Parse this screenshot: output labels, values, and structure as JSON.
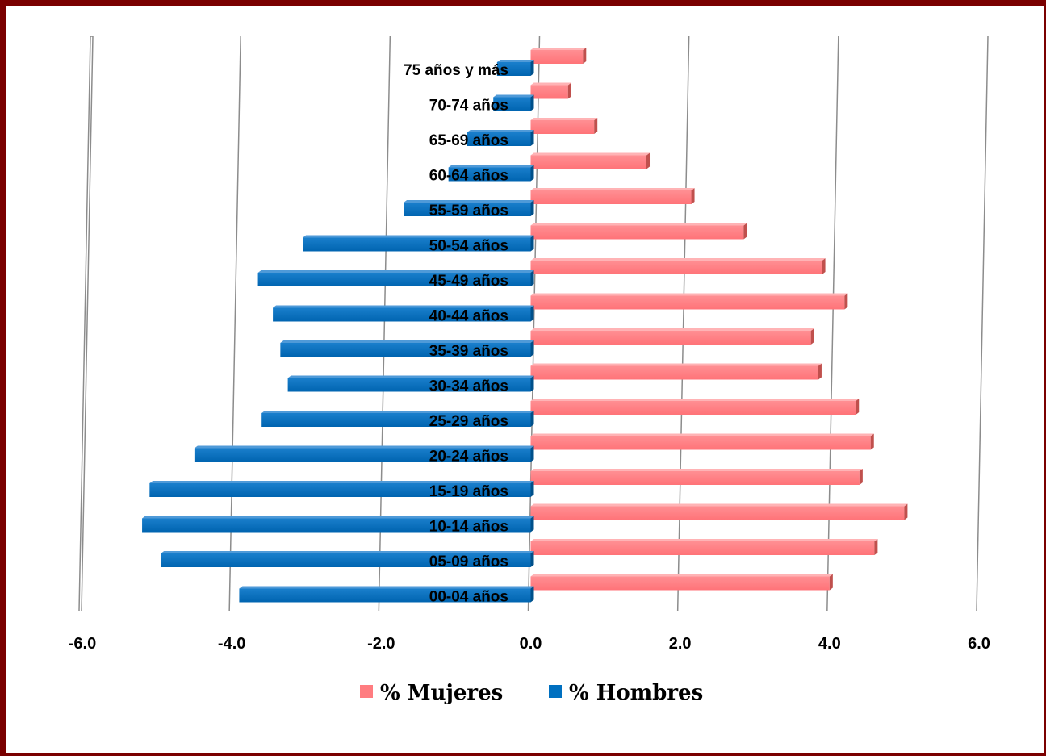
{
  "chart_data": {
    "type": "bar",
    "orientation": "horizontal",
    "categories": [
      "00-04 años",
      "05-09 años",
      "10-14 años",
      "15-19 años",
      "20-24 años",
      "25-29 años",
      "30-34 años",
      "35-39 años",
      "40-44 años",
      "45-49 años",
      "50-54 años",
      "55-59 años",
      "60-64 años",
      "65-69 años",
      "70-74 años",
      "75 años y más"
    ],
    "series": [
      {
        "name": "% Mujeres",
        "color": "#ff7c80",
        "values": [
          4.0,
          4.6,
          5.0,
          4.4,
          4.55,
          4.35,
          3.85,
          3.75,
          4.2,
          3.9,
          2.85,
          2.15,
          1.55,
          0.85,
          0.5,
          0.7
        ]
      },
      {
        "name": "% Hombres",
        "color": "#0070c0",
        "values": [
          -3.9,
          -4.95,
          -5.2,
          -5.1,
          -4.5,
          -3.6,
          -3.25,
          -3.35,
          -3.45,
          -3.65,
          -3.05,
          -1.7,
          -1.1,
          -0.85,
          -0.5,
          -0.45
        ]
      }
    ],
    "xlim": [
      -6.0,
      6.0
    ],
    "xticks": [
      "-6.0",
      "-4.0",
      "-2.0",
      "0.0",
      "2.0",
      "4.0",
      "6.0"
    ],
    "gridlines": "vertical",
    "legend_position": "bottom",
    "title": "",
    "xlabel": "",
    "ylabel": ""
  }
}
